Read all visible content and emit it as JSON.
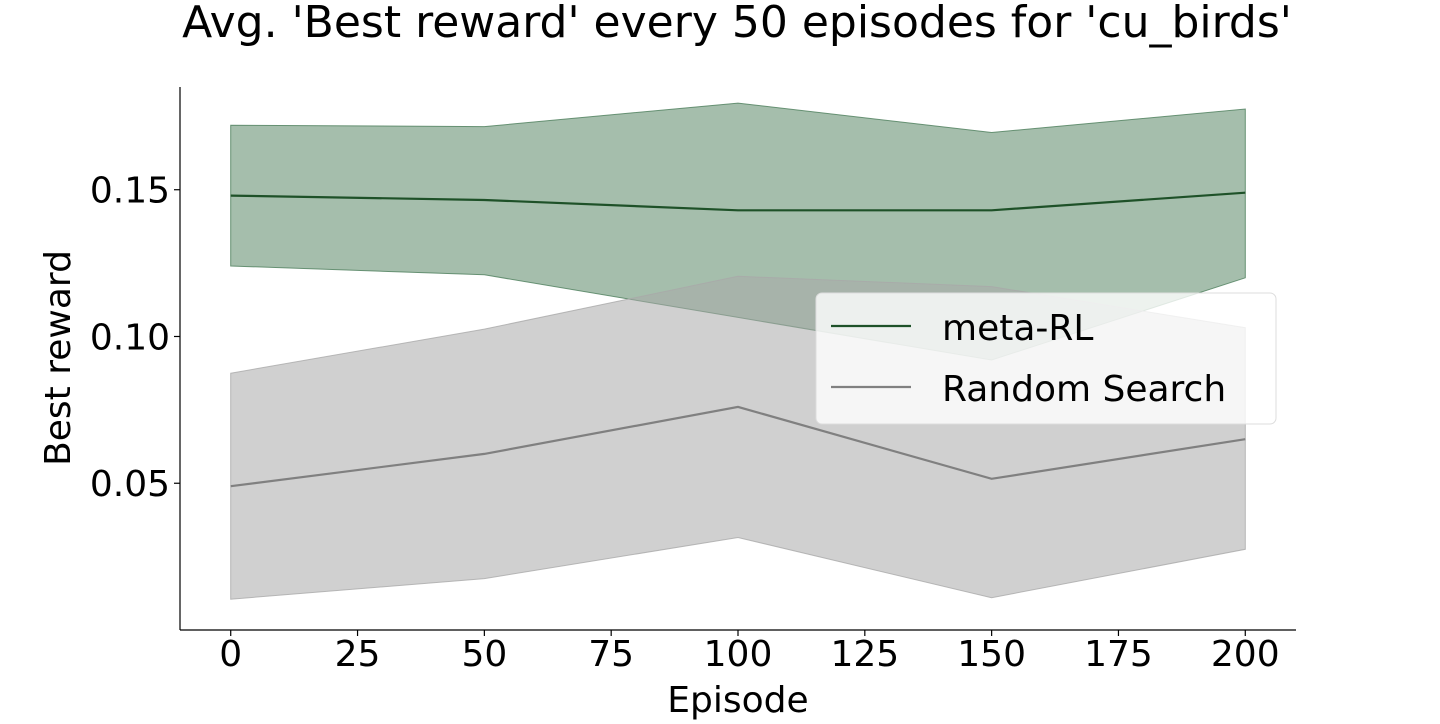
{
  "chart_data": {
    "type": "line",
    "title": "Avg. 'Best reward' every 50 episodes for 'cu_birds'",
    "xlabel": "Episode",
    "ylabel": "Best reward",
    "x": [
      0,
      50,
      100,
      150,
      200
    ],
    "xlim": [
      -10,
      210
    ],
    "ylim": [
      0.0,
      0.185
    ],
    "xticks": [
      0,
      25,
      50,
      75,
      100,
      125,
      150,
      175,
      200
    ],
    "xtick_labels": [
      "0",
      "25",
      "50",
      "75",
      "100",
      "125",
      "150",
      "175",
      "200"
    ],
    "yticks": [
      0.05,
      0.1,
      0.15
    ],
    "ytick_labels": [
      "0.05",
      "0.10",
      "0.15"
    ],
    "grid": false,
    "legend_position": "center-right",
    "series": [
      {
        "name": "meta-RL",
        "values": [
          0.148,
          0.1465,
          0.143,
          0.143,
          0.149
        ],
        "lower": [
          0.124,
          0.121,
          0.1065,
          0.092,
          0.12
        ],
        "upper": [
          0.172,
          0.1715,
          0.1795,
          0.1695,
          0.1775
        ],
        "line_color": "#1e5128",
        "fill_color": "#4b7d5a",
        "fill_opacity": 0.5
      },
      {
        "name": "Random Search",
        "values": [
          0.049,
          0.06,
          0.076,
          0.0515,
          0.065
        ],
        "lower": [
          0.0105,
          0.0175,
          0.0315,
          0.011,
          0.0275
        ],
        "upper": [
          0.0875,
          0.1025,
          0.1205,
          0.117,
          0.103
        ],
        "line_color": "#808080",
        "fill_color": "#a9a9a9",
        "fill_opacity": 0.55
      }
    ]
  }
}
